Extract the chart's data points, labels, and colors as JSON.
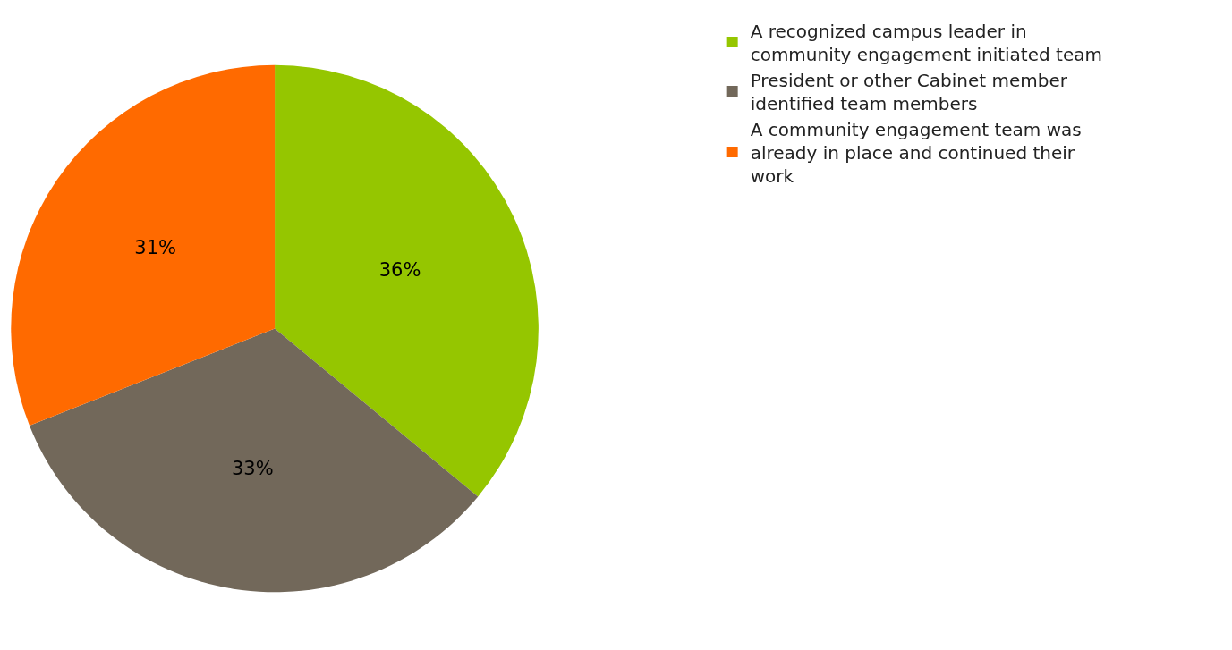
{
  "chart_data": {
    "type": "pie",
    "categories": [
      "A recognized campus leader in community engagement initiated team",
      "President or other Cabinet member identified team members",
      "A community engagement team was already in place and continued their work"
    ],
    "values": [
      36,
      33,
      31
    ],
    "colors": [
      "#95c600",
      "#72685a",
      "#ff6a00"
    ],
    "value_labels": [
      "36%",
      "33%",
      "31%"
    ],
    "legend": "right"
  }
}
